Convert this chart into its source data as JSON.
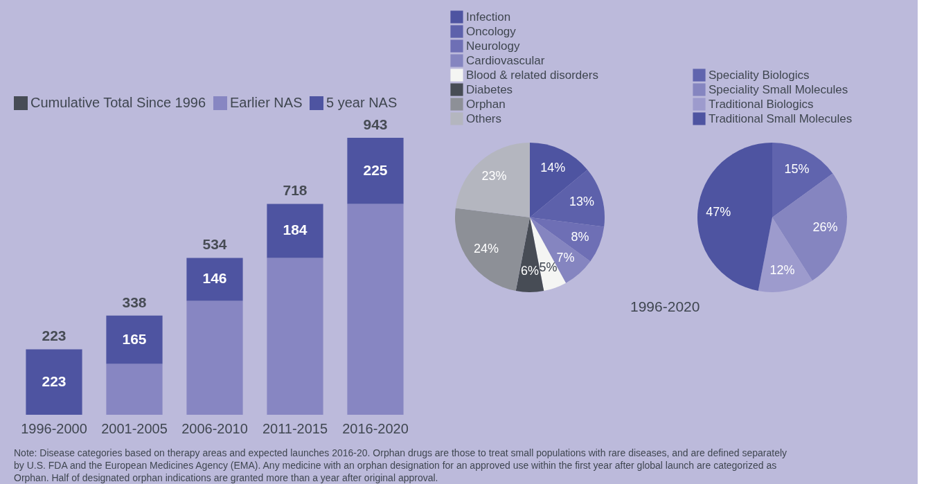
{
  "chart_data": [
    {
      "type": "bar",
      "stacked": true,
      "legend": "top left",
      "tick_labels": "x",
      "categories": [
        "1996-2000",
        "2001-2005",
        "2006-2010",
        "2011-2015",
        "2016-2020"
      ],
      "series": [
        {
          "name": "Cumulative Total Since 1996",
          "color": "#474c55",
          "values": [
            null,
            null,
            null,
            null,
            null
          ]
        },
        {
          "name": "Earlier NAS",
          "color": "#8786c2",
          "values": [
            null,
            173,
            388,
            534,
            718
          ]
        },
        {
          "name": "5 year NAS",
          "color": "#4e54a1",
          "values": [
            223,
            165,
            146,
            184,
            225
          ],
          "value_labels": [
            "223",
            "165",
            "146",
            "184",
            "225"
          ]
        }
      ],
      "totals": [
        "223",
        "338",
        "534",
        "718",
        "943"
      ],
      "annotations": [
        "Note: Disease categories based on therapy areas and expected launches 2016-20. Orphan drugs are those to treat small populations with rare diseases, and are defined separately by U.S. FDA and the European Medicines Agency (EMA). Any medicine with an orphan designation for an approved use within the first year after global launch are categorized as Orphan. Half of designated orphan indications are granted more than a year after original approval."
      ]
    },
    {
      "type": "pie",
      "legend": "top",
      "categories": [
        "Infection",
        "Oncology",
        "Neurology",
        "Cardiovascular",
        "Blood & related disorders",
        "Diabetes",
        "Orphan",
        "Others"
      ],
      "values": [
        14,
        13,
        8,
        7,
        5,
        6,
        24,
        23
      ],
      "colors": [
        "#4e54a1",
        "#5d61ab",
        "#6e6fb5",
        "#8585c0",
        "#f4f5f3",
        "#474c55",
        "#8d9097",
        "#b4b6bf"
      ],
      "value_labels": [
        "14%",
        "13%",
        "8%",
        "7%",
        "5%",
        "6%",
        "24%",
        "23%"
      ]
    },
    {
      "type": "pie",
      "legend": "top",
      "xlabel": "1996-2020",
      "categories": [
        "Speciality Biologics",
        "Speciality Small Molecules",
        "Traditional Biologics",
        "Traditional Small Molecules"
      ],
      "values": [
        15,
        26,
        12,
        47
      ],
      "colors": [
        "#6064ae",
        "#8585c0",
        "#9d9bcd",
        "#4e54a1"
      ],
      "value_labels": [
        "15%",
        "26%",
        "12%",
        "47%"
      ]
    }
  ]
}
